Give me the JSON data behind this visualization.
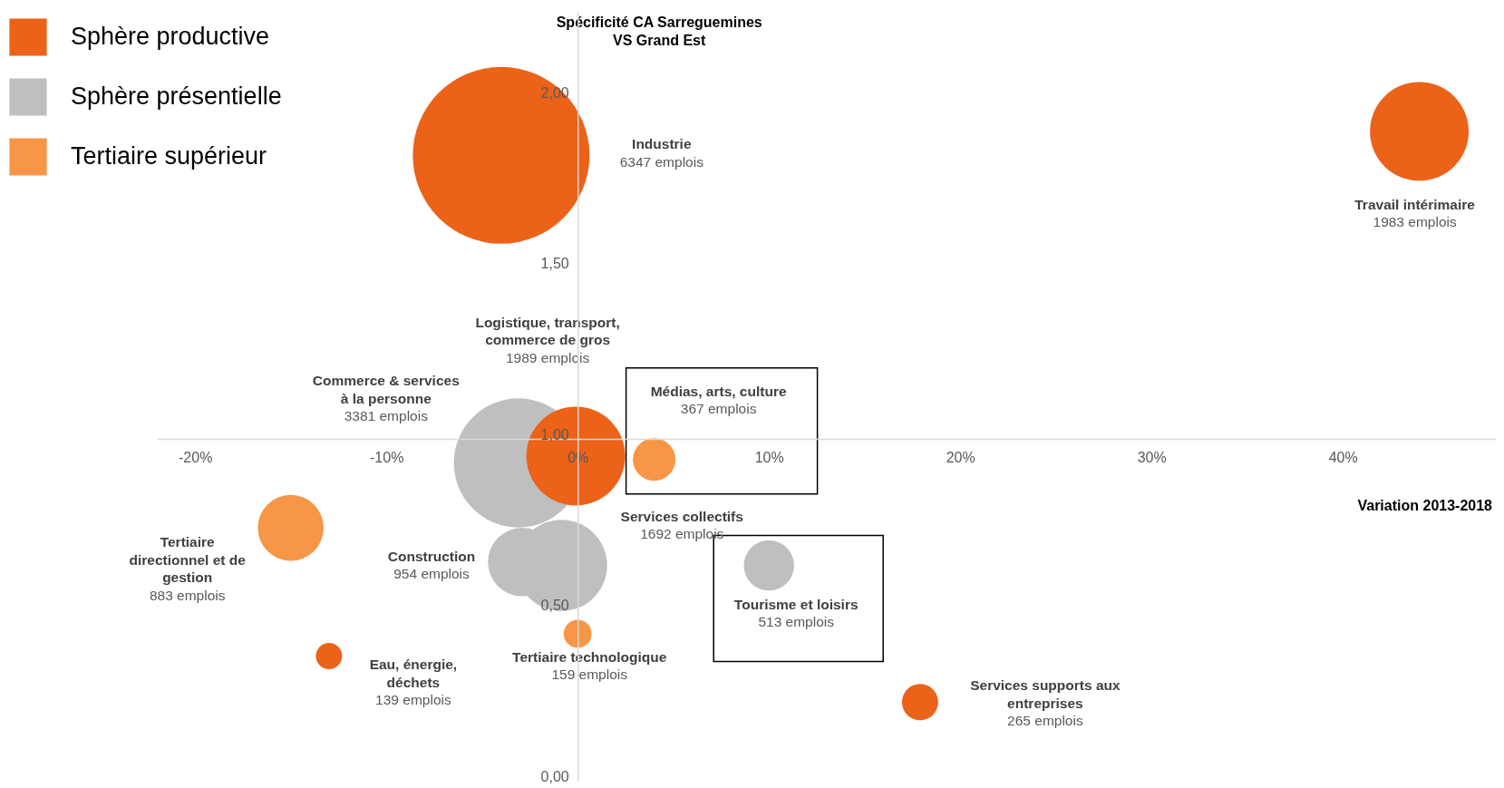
{
  "chart_data": {
    "type": "bubble",
    "ylabel": "Spécificité CA Sarreguemines\nVS Grand Est",
    "xlabel": "Variation 2013-2018",
    "series": [
      {
        "name": "Sphère productive",
        "color": "#ec6219",
        "x": [
          -4.0,
          44.0,
          -0.1,
          -13.0,
          17.9
        ],
        "values": [
          1.83,
          1.9,
          0.95,
          0.365,
          0.23
        ],
        "sizes": [
          1,
          0.312,
          0.313,
          0.022,
          0.042
        ]
      },
      {
        "name": "Sphère présentielle",
        "color": "#bfbfbf",
        "x": [
          -3.1,
          -0.85,
          -2.9,
          10.0
        ],
        "values": [
          0.93,
          0.63,
          0.64,
          0.63
        ],
        "sizes": [
          0.533,
          0.267,
          0.15,
          0.081
        ]
      },
      {
        "name": "Tertiaire supérieur",
        "color": "#f79646",
        "x": [
          4.0,
          -15.0,
          0.0
        ],
        "values": [
          0.94,
          0.74,
          0.43
        ],
        "sizes": [
          0.058,
          0.139,
          0.025
        ]
      }
    ],
    "xlim": [
      -22,
      48
    ],
    "ylim": [
      0,
      2.25
    ],
    "xticks": [
      {
        "value": -20,
        "label": "-20%"
      },
      {
        "value": -10,
        "label": "-10%"
      },
      {
        "value": 0,
        "label": "0%"
      },
      {
        "value": 10,
        "label": "10%"
      },
      {
        "value": 20,
        "label": "20%"
      },
      {
        "value": 30,
        "label": "30%"
      },
      {
        "value": 40,
        "label": "40%"
      }
    ],
    "yticks": [
      {
        "value": 0,
        "label": "0,00"
      },
      {
        "value": 0.5,
        "label": "0,50"
      },
      {
        "value": 1,
        "label": "1,00"
      },
      {
        "value": 1.5,
        "label": "1,50"
      },
      {
        "value": 2,
        "label": "2,00"
      }
    ],
    "legend": "top left",
    "annotations": [
      "Industrie",
      "6347 emplois",
      "Travail intérimaire",
      "1983 emplois",
      "Logistique, transport,\ncommerce de gros",
      "1989 emplois",
      "Eau, énergie,\ndéchets",
      "139 emplois",
      "Services supports aux\nentreprises",
      "265 emplois",
      "Commerce & services\nà la personne",
      "3381 emplois",
      "Services collectifs",
      "1692 emplois",
      "Construction",
      "954 emplois",
      "Tourisme et loisirs",
      "513 emplois",
      "Médias, arts, culture",
      "367 emplois",
      "Tertiaire\ndirectionnel et de\ngestion",
      "883 emplois",
      "Tertiaire technologique",
      "159 emplois"
    ]
  }
}
